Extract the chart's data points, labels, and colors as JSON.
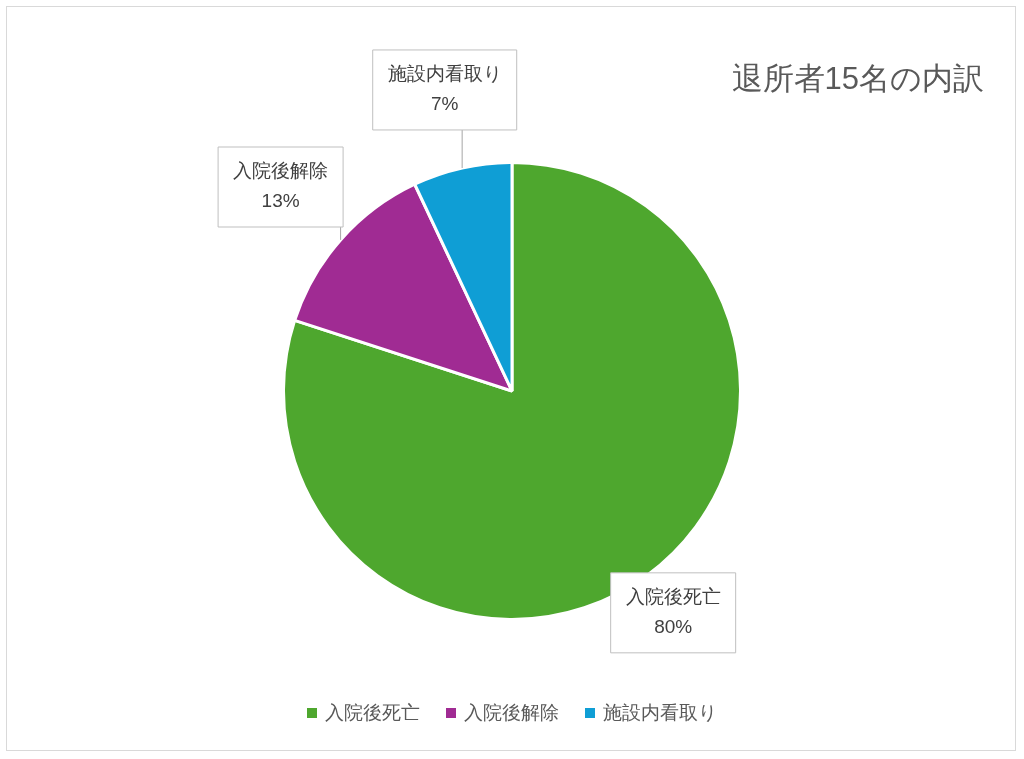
{
  "chart_data": {
    "type": "pie",
    "title": "退所者15名の内訳",
    "categories": [
      "入院後死亡",
      "入院後解除",
      "施設内看取り"
    ],
    "values": [
      80,
      13,
      7
    ],
    "colors": [
      "#4ea72e",
      "#a02b93",
      "#0f9ed5"
    ],
    "value_labels": [
      "80%",
      "13%",
      "7%"
    ],
    "legend": "bottom"
  }
}
